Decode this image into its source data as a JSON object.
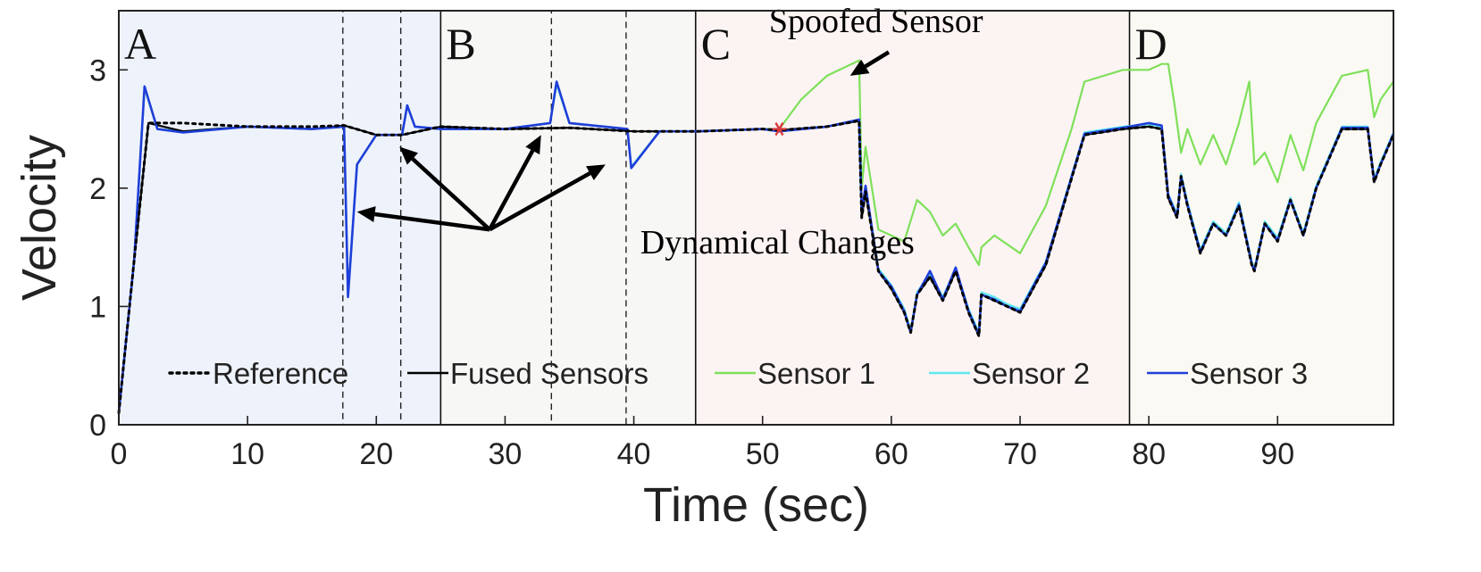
{
  "chart_data": {
    "type": "line",
    "xlabel": "Time (sec)",
    "ylabel": "Velocity",
    "xlim": [
      0,
      99
    ],
    "ylim": [
      0,
      3.5
    ],
    "x_ticks": [
      0,
      10,
      20,
      30,
      40,
      50,
      60,
      70,
      80,
      90
    ],
    "y_ticks": [
      0,
      1,
      2,
      3
    ],
    "grid": false,
    "legend_position": "bottom",
    "regions": [
      {
        "label": "A",
        "start": 0,
        "end": 25,
        "color": "#eef2fb"
      },
      {
        "label": "B",
        "start": 25,
        "end": 44.8,
        "color": "#f7f7f6"
      },
      {
        "label": "C",
        "start": 44.8,
        "end": 78.5,
        "color": "#fcf4f3"
      },
      {
        "label": "D",
        "start": 78.5,
        "end": 99,
        "color": "#fbf9f3"
      }
    ],
    "dashed_boxes": [
      [
        17.4,
        21.9
      ],
      [
        33.6,
        39.4
      ]
    ],
    "annotations": [
      {
        "text": "Dynamical Changes",
        "x": 40.5,
        "y": 1.45
      },
      {
        "text": "Spoofed Sensor",
        "x": 50.5,
        "y": 3.32
      }
    ],
    "spoof_marker": {
      "x": 51.3,
      "y": 2.5,
      "color": "#d93a3a"
    },
    "series": [
      {
        "name": "Reference",
        "color": "#000000",
        "style": "dotted",
        "x": [
          0,
          1.2,
          2.3,
          5,
          10,
          15,
          17.5,
          20,
          22,
          25,
          30,
          35,
          40,
          45,
          50,
          51.3,
          55,
          57.5,
          57.7,
          58,
          59,
          60,
          61,
          61.5,
          62,
          63,
          64,
          65,
          66,
          66.8,
          67,
          68,
          69,
          70,
          72,
          75,
          78,
          80,
          81,
          81.5,
          82.2,
          82.5,
          83,
          84,
          85,
          86,
          87,
          88,
          88.2,
          89,
          90,
          91,
          92,
          93,
          95,
          97,
          97.5,
          98,
          99
        ],
        "values": [
          0.1,
          1.4,
          2.55,
          2.55,
          2.52,
          2.52,
          2.53,
          2.45,
          2.45,
          2.52,
          2.5,
          2.51,
          2.48,
          2.48,
          2.5,
          2.49,
          2.52,
          2.57,
          1.75,
          1.97,
          1.3,
          1.15,
          0.95,
          0.78,
          1.1,
          1.25,
          1.05,
          1.3,
          0.95,
          0.75,
          1.1,
          1.05,
          1.0,
          0.95,
          1.35,
          2.45,
          2.5,
          2.52,
          2.5,
          1.92,
          1.75,
          2.1,
          1.85,
          1.45,
          1.7,
          1.6,
          1.85,
          1.35,
          1.3,
          1.7,
          1.55,
          1.9,
          1.6,
          2.0,
          2.5,
          2.5,
          2.05,
          2.2,
          2.45
        ]
      },
      {
        "name": "Fused Sensors",
        "color": "#000000",
        "style": "solid",
        "x": [
          0,
          1.2,
          2.3,
          5,
          10,
          15,
          17.5,
          20,
          22,
          25,
          30,
          35,
          40,
          45,
          50,
          51.3,
          55,
          57.5,
          57.7,
          58,
          59,
          60,
          61,
          61.5,
          62,
          63,
          64,
          65,
          66,
          66.8,
          67,
          68,
          69,
          70,
          72,
          75,
          78,
          80,
          81,
          81.5,
          82.2,
          82.5,
          83,
          84,
          85,
          86,
          87,
          88,
          88.2,
          89,
          90,
          91,
          92,
          93,
          95,
          97,
          97.5,
          98,
          99
        ],
        "values": [
          0.1,
          1.4,
          2.55,
          2.48,
          2.52,
          2.5,
          2.53,
          2.45,
          2.45,
          2.52,
          2.5,
          2.51,
          2.48,
          2.48,
          2.5,
          2.49,
          2.52,
          2.57,
          1.75,
          1.97,
          1.3,
          1.15,
          0.95,
          0.78,
          1.1,
          1.25,
          1.05,
          1.3,
          0.95,
          0.75,
          1.1,
          1.05,
          1.0,
          0.95,
          1.35,
          2.45,
          2.5,
          2.52,
          2.5,
          1.92,
          1.75,
          2.1,
          1.85,
          1.45,
          1.7,
          1.6,
          1.85,
          1.35,
          1.3,
          1.7,
          1.55,
          1.9,
          1.6,
          2.0,
          2.5,
          2.5,
          2.05,
          2.2,
          2.45
        ]
      },
      {
        "name": "Sensor 1",
        "color": "#7ee05a",
        "style": "solid",
        "x": [
          0,
          1.2,
          2,
          3,
          5,
          10,
          15,
          17.5,
          17.8,
          18.5,
          20,
          22,
          22.4,
          23,
          25,
          30,
          33.5,
          34,
          35,
          39.5,
          39.8,
          42,
          45,
          50,
          51.3,
          53,
          55,
          57.5,
          57.7,
          58,
          59,
          60,
          61,
          62,
          63,
          64,
          65,
          66,
          66.8,
          67,
          68,
          70,
          72,
          74,
          75,
          78,
          80,
          81,
          81.5,
          82,
          82.5,
          83,
          84,
          85,
          86,
          87,
          87.8,
          88.2,
          89,
          90,
          91,
          92,
          93,
          95,
          97,
          97.5,
          98,
          99
        ],
        "values": [
          0.1,
          1.4,
          2.85,
          2.5,
          2.48,
          2.52,
          2.5,
          2.52,
          1.1,
          2.2,
          2.45,
          2.45,
          2.7,
          2.52,
          2.5,
          2.5,
          2.55,
          2.88,
          2.55,
          2.5,
          2.18,
          2.48,
          2.48,
          2.5,
          2.5,
          2.75,
          2.95,
          3.08,
          2.0,
          2.35,
          1.65,
          1.6,
          1.55,
          1.9,
          1.8,
          1.6,
          1.7,
          1.5,
          1.35,
          1.5,
          1.6,
          1.45,
          1.85,
          2.5,
          2.9,
          3.0,
          3.0,
          3.05,
          3.05,
          2.7,
          2.3,
          2.5,
          2.2,
          2.45,
          2.2,
          2.55,
          2.9,
          2.2,
          2.3,
          2.05,
          2.45,
          2.15,
          2.55,
          2.95,
          3.0,
          2.6,
          2.75,
          2.9
        ]
      },
      {
        "name": "Sensor 2",
        "color": "#5ee8f0",
        "style": "solid",
        "x": [
          0,
          1.2,
          2,
          3,
          5,
          10,
          15,
          17.5,
          17.8,
          18.5,
          20,
          22,
          22.4,
          23,
          25,
          30,
          33.5,
          34,
          35,
          39.5,
          39.8,
          42,
          45,
          50,
          51.3,
          55,
          57.5,
          57.7,
          58,
          59,
          60,
          61,
          61.5,
          62,
          63,
          64,
          65,
          66,
          66.8,
          67,
          68,
          69,
          70,
          72,
          75,
          78,
          80,
          81,
          81.5,
          82.2,
          82.5,
          83,
          84,
          85,
          86,
          87,
          88,
          88.2,
          89,
          90,
          91,
          92,
          93,
          95,
          97,
          97.5,
          98,
          99
        ],
        "values": [
          0.1,
          1.4,
          2.85,
          2.5,
          2.48,
          2.52,
          2.5,
          2.52,
          1.1,
          2.2,
          2.45,
          2.45,
          2.7,
          2.52,
          2.5,
          2.5,
          2.55,
          2.88,
          2.55,
          2.5,
          2.18,
          2.48,
          2.48,
          2.5,
          2.49,
          2.52,
          2.57,
          1.78,
          2.0,
          1.32,
          1.18,
          0.98,
          0.8,
          1.12,
          1.28,
          1.08,
          1.32,
          0.98,
          0.78,
          1.12,
          1.08,
          1.02,
          0.98,
          1.38,
          2.47,
          2.52,
          2.54,
          2.52,
          1.95,
          1.78,
          2.12,
          1.88,
          1.48,
          1.72,
          1.62,
          1.88,
          1.38,
          1.32,
          1.72,
          1.58,
          1.92,
          1.62,
          2.02,
          2.52,
          2.52,
          2.08,
          2.22,
          2.47
        ]
      },
      {
        "name": "Sensor 3",
        "color": "#1f3fd8",
        "style": "solid",
        "x": [
          0,
          1.2,
          2,
          3,
          5,
          10,
          15,
          17.5,
          17.8,
          18.5,
          20,
          22,
          22.4,
          23,
          25,
          30,
          33.5,
          34,
          35,
          39.5,
          39.8,
          42,
          45,
          50,
          51.3,
          55,
          57.5,
          57.7,
          58,
          59,
          60,
          61,
          61.5,
          62,
          63,
          64,
          65,
          66,
          66.8,
          67,
          68,
          69,
          70,
          72,
          75,
          78,
          80,
          81,
          81.5,
          82.2,
          82.5,
          83,
          84,
          85,
          86,
          87,
          88,
          88.2,
          89,
          90,
          91,
          92,
          93,
          95,
          97,
          97.5,
          98,
          99
        ],
        "values": [
          0.1,
          1.4,
          2.86,
          2.5,
          2.47,
          2.52,
          2.5,
          2.52,
          1.08,
          2.2,
          2.45,
          2.45,
          2.7,
          2.52,
          2.5,
          2.5,
          2.55,
          2.9,
          2.55,
          2.5,
          2.17,
          2.48,
          2.48,
          2.5,
          2.48,
          2.52,
          2.58,
          1.8,
          2.02,
          1.3,
          1.17,
          0.96,
          0.78,
          1.1,
          1.3,
          1.06,
          1.33,
          0.96,
          0.76,
          1.1,
          1.06,
          1.0,
          0.96,
          1.37,
          2.46,
          2.51,
          2.55,
          2.53,
          1.94,
          1.76,
          2.1,
          1.86,
          1.46,
          1.7,
          1.6,
          1.86,
          1.36,
          1.3,
          1.7,
          1.56,
          1.9,
          1.6,
          2.0,
          2.51,
          2.51,
          2.06,
          2.2,
          2.46
        ]
      }
    ]
  }
}
